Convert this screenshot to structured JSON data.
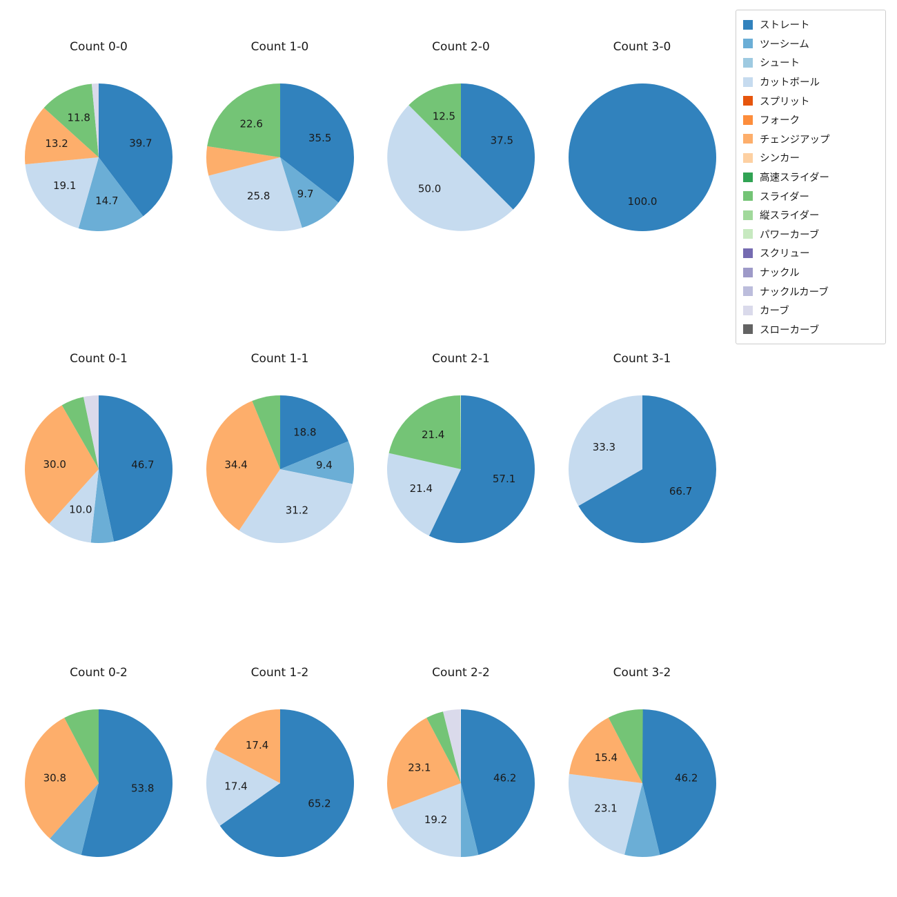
{
  "legend": {
    "items": [
      {
        "label": "ストレート",
        "color": "#3182bd"
      },
      {
        "label": "ツーシーム",
        "color": "#6baed6"
      },
      {
        "label": "シュート",
        "color": "#9ecae1"
      },
      {
        "label": "カットボール",
        "color": "#c6dbef"
      },
      {
        "label": "スプリット",
        "color": "#e6550d"
      },
      {
        "label": "フォーク",
        "color": "#fd8d3c"
      },
      {
        "label": "チェンジアップ",
        "color": "#fdae6b"
      },
      {
        "label": "シンカー",
        "color": "#fdd0a2"
      },
      {
        "label": "高速スライダー",
        "color": "#31a354"
      },
      {
        "label": "スライダー",
        "color": "#74c476"
      },
      {
        "label": "縦スライダー",
        "color": "#a1d99b"
      },
      {
        "label": "パワーカーブ",
        "color": "#c7e9c0"
      },
      {
        "label": "スクリュー",
        "color": "#756bb1"
      },
      {
        "label": "ナックル",
        "color": "#9e9ac8"
      },
      {
        "label": "ナックルカーブ",
        "color": "#bcbddc"
      },
      {
        "label": "カーブ",
        "color": "#dadaeb"
      },
      {
        "label": "スローカーブ",
        "color": "#636363"
      }
    ]
  },
  "chart_data": [
    {
      "type": "pie",
      "title": "Count 0-0",
      "start_angle": 90,
      "direction": "clockwise",
      "labels": [
        "ストレート",
        "ツーシーム",
        "カットボール",
        "チェンジアップ",
        "スライダー",
        "カーブ"
      ],
      "values": [
        39.7,
        14.7,
        19.1,
        13.2,
        11.8,
        1.5
      ]
    },
    {
      "type": "pie",
      "title": "Count 1-0",
      "start_angle": 90,
      "direction": "clockwise",
      "labels": [
        "ストレート",
        "ツーシーム",
        "カットボール",
        "チェンジアップ",
        "スライダー"
      ],
      "values": [
        35.5,
        9.7,
        25.8,
        6.4,
        22.6
      ]
    },
    {
      "type": "pie",
      "title": "Count 2-0",
      "start_angle": 90,
      "direction": "clockwise",
      "labels": [
        "ストレート",
        "カットボール",
        "スライダー"
      ],
      "values": [
        37.5,
        50.0,
        12.5
      ]
    },
    {
      "type": "pie",
      "title": "Count 3-0",
      "start_angle": 90,
      "direction": "clockwise",
      "labels": [
        "ストレート"
      ],
      "values": [
        100.0
      ]
    },
    {
      "type": "pie",
      "title": "Count 0-1",
      "start_angle": 90,
      "direction": "clockwise",
      "labels": [
        "ストレート",
        "ツーシーム",
        "カットボール",
        "チェンジアップ",
        "スライダー",
        "カーブ"
      ],
      "values": [
        46.7,
        5.0,
        10.0,
        30.0,
        5.0,
        3.3
      ]
    },
    {
      "type": "pie",
      "title": "Count 1-1",
      "start_angle": 90,
      "direction": "clockwise",
      "labels": [
        "ストレート",
        "ツーシーム",
        "カットボール",
        "チェンジアップ",
        "スライダー"
      ],
      "values": [
        18.8,
        9.4,
        31.2,
        34.4,
        6.2
      ]
    },
    {
      "type": "pie",
      "title": "Count 2-1",
      "start_angle": 90,
      "direction": "clockwise",
      "labels": [
        "ストレート",
        "カットボール",
        "スライダー"
      ],
      "values": [
        57.1,
        21.4,
        21.4
      ]
    },
    {
      "type": "pie",
      "title": "Count 3-1",
      "start_angle": 90,
      "direction": "clockwise",
      "labels": [
        "ストレート",
        "カットボール"
      ],
      "values": [
        66.7,
        33.3
      ]
    },
    {
      "type": "pie",
      "title": "Count 0-2",
      "start_angle": 90,
      "direction": "clockwise",
      "labels": [
        "ストレート",
        "ツーシーム",
        "チェンジアップ",
        "スライダー"
      ],
      "values": [
        53.8,
        7.7,
        30.8,
        7.7
      ]
    },
    {
      "type": "pie",
      "title": "Count 1-2",
      "start_angle": 90,
      "direction": "clockwise",
      "labels": [
        "ストレート",
        "カットボール",
        "チェンジアップ"
      ],
      "values": [
        65.2,
        17.4,
        17.4
      ]
    },
    {
      "type": "pie",
      "title": "Count 2-2",
      "start_angle": 90,
      "direction": "clockwise",
      "labels": [
        "ストレート",
        "ツーシーム",
        "カットボール",
        "チェンジアップ",
        "スライダー",
        "カーブ"
      ],
      "values": [
        46.2,
        3.8,
        19.2,
        23.1,
        3.8,
        3.8
      ]
    },
    {
      "type": "pie",
      "title": "Count 3-2",
      "start_angle": 90,
      "direction": "clockwise",
      "labels": [
        "ストレート",
        "ツーシーム",
        "カットボール",
        "チェンジアップ",
        "スライダー"
      ],
      "values": [
        46.2,
        7.7,
        23.1,
        15.4,
        7.7
      ]
    }
  ]
}
